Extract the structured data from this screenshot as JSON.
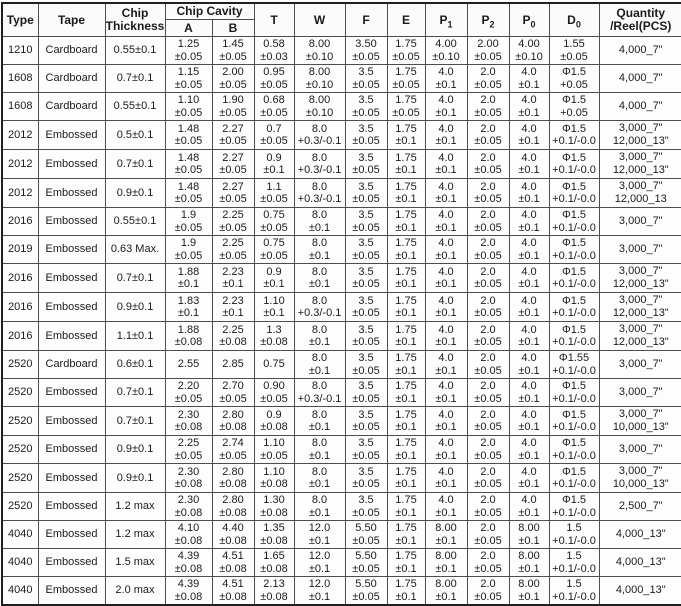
{
  "table": {
    "header": {
      "type": "Type",
      "tape": "Tape",
      "chip_thickness": "Chip Thickness",
      "chip_cavity": "Chip Cavity",
      "cavity_a": "A",
      "cavity_b": "B",
      "t": "T",
      "w": "W",
      "f": "F",
      "e": "E",
      "p1": {
        "base": "P",
        "sub": "1"
      },
      "p2": {
        "base": "P",
        "sub": "2"
      },
      "p0": {
        "base": "P",
        "sub": "0"
      },
      "d0": {
        "base": "D",
        "sub": "0"
      },
      "quantity": "Quantity /Reel(PCS)"
    },
    "rows": [
      {
        "type": "1210",
        "tape": "Cardboard",
        "thickness": "0.55±0.1",
        "a": [
          "1.25",
          "±0.05"
        ],
        "b": [
          "1.45",
          "±0.05"
        ],
        "t": [
          "0.58",
          "±0.03"
        ],
        "w": [
          "8.00",
          "±0.10"
        ],
        "f": [
          "3.50",
          "±0.05"
        ],
        "e": [
          "1.75",
          "±0.05"
        ],
        "p1": [
          "4.00",
          "±0.10"
        ],
        "p2": [
          "2.00",
          "±0.05"
        ],
        "p0": [
          "4.00",
          "±0.10"
        ],
        "d0": [
          "1.55",
          "±0.05"
        ],
        "qty": [
          "4,000_7\""
        ]
      },
      {
        "type": "1608",
        "tape": "Cardboard",
        "thickness": "0.7±0.1",
        "a": [
          "1.15",
          "±0.05"
        ],
        "b": [
          "2.00",
          "±0.05"
        ],
        "t": [
          "0.95",
          "±0.05"
        ],
        "w": [
          "8.00",
          "±0.10"
        ],
        "f": [
          "3.5",
          "±0.05"
        ],
        "e": [
          "1.75",
          "±0.05"
        ],
        "p1": [
          "4.0",
          "±0.1"
        ],
        "p2": [
          "2.0",
          "±0.05"
        ],
        "p0": [
          "4.0",
          "±0.1"
        ],
        "d0": [
          "Φ1.5",
          "+0.05"
        ],
        "qty": [
          "4,000_7\""
        ]
      },
      {
        "type": "1608",
        "tape": "Cardboard",
        "thickness": "0.55±0.1",
        "a": [
          "1.10",
          "±0.05"
        ],
        "b": [
          "1.90",
          "±0.05"
        ],
        "t": [
          "0.68",
          "±0.05"
        ],
        "w": [
          "8.00",
          "±0.10"
        ],
        "f": [
          "3.5",
          "±0.05"
        ],
        "e": [
          "1.75",
          "±0.05"
        ],
        "p1": [
          "4.0",
          "±0.1"
        ],
        "p2": [
          "2.0",
          "±0.05"
        ],
        "p0": [
          "4.0",
          "±0.1"
        ],
        "d0": [
          "Φ1.5",
          "+0.05"
        ],
        "qty": [
          "4,000_7\""
        ]
      },
      {
        "type": "2012",
        "tape": "Embossed",
        "thickness": "0.5±0.1",
        "a": [
          "1.48",
          "±0.05"
        ],
        "b": [
          "2.27",
          "±0.05"
        ],
        "t": [
          "0.7",
          "±0.05"
        ],
        "w": [
          "8.0",
          "+0.3/-0.1"
        ],
        "f": [
          "3.5",
          "±0.05"
        ],
        "e": [
          "1.75",
          "±0.1"
        ],
        "p1": [
          "4.0",
          "±0.1"
        ],
        "p2": [
          "2.0",
          "±0.05"
        ],
        "p0": [
          "4.0",
          "±0.1"
        ],
        "d0": [
          "Φ1.5",
          "+0.1/-0.0"
        ],
        "qty": [
          "3,000_7\"",
          "12,000_13\""
        ]
      },
      {
        "type": "2012",
        "tape": "Embossed",
        "thickness": "0.7±0.1",
        "a": [
          "1.48",
          "±0.05"
        ],
        "b": [
          "2.27",
          "±0.05"
        ],
        "t": [
          "0.9",
          "±0.1"
        ],
        "w": [
          "8.0",
          "+0.3/-0.1"
        ],
        "f": [
          "3.5",
          "±0.05"
        ],
        "e": [
          "1.75",
          "±0.1"
        ],
        "p1": [
          "4.0",
          "±0.1"
        ],
        "p2": [
          "2.0",
          "±0.05"
        ],
        "p0": [
          "4.0",
          "±0.1"
        ],
        "d0": [
          "Φ1.5",
          "+0.1/-0.0"
        ],
        "qty": [
          "3,000_7\"",
          "12,000_13\""
        ]
      },
      {
        "type": "2012",
        "tape": "Embossed",
        "thickness": "0.9±0.1",
        "a": [
          "1.48",
          "±0.05"
        ],
        "b": [
          "2.27",
          "±0.05"
        ],
        "t": [
          "1.1",
          "±0.05"
        ],
        "w": [
          "8.0",
          "+0.3/-0.1"
        ],
        "f": [
          "3.5",
          "±0.05"
        ],
        "e": [
          "1.75",
          "±0.1"
        ],
        "p1": [
          "4.0",
          "±0.1"
        ],
        "p2": [
          "2.0",
          "±0.05"
        ],
        "p0": [
          "4.0",
          "±0.1"
        ],
        "d0": [
          "Φ1.5",
          "+0.1/-0.0"
        ],
        "qty": [
          "3,000_7\"",
          "12,000_13"
        ]
      },
      {
        "type": "2016",
        "tape": "Embossed",
        "thickness": "0.55±0.1",
        "a": [
          "1.9",
          "±0.05"
        ],
        "b": [
          "2.25",
          "±0.05"
        ],
        "t": [
          "0.75",
          "±0.05"
        ],
        "w": [
          "8.0",
          "±0.1"
        ],
        "f": [
          "3.5",
          "±0.05"
        ],
        "e": [
          "1.75",
          "±0.1"
        ],
        "p1": [
          "4.0",
          "±0.1"
        ],
        "p2": [
          "2.0",
          "±0.05"
        ],
        "p0": [
          "4.0",
          "±0.1"
        ],
        "d0": [
          "Φ1.5",
          "+0.1/-0.0"
        ],
        "qty": [
          "3,000_7\""
        ]
      },
      {
        "type": "2019",
        "tape": "Embossed",
        "thickness": "0.63 Max.",
        "a": [
          "1.9",
          "±0.05"
        ],
        "b": [
          "2.25",
          "±0.05"
        ],
        "t": [
          "0.75",
          "±0.05"
        ],
        "w": [
          "8.0",
          "±0.1"
        ],
        "f": [
          "3.5",
          "±0.05"
        ],
        "e": [
          "1.75",
          "±0.1"
        ],
        "p1": [
          "4.0",
          "±0.1"
        ],
        "p2": [
          "2.0",
          "±0.05"
        ],
        "p0": [
          "4.0",
          "±0.1"
        ],
        "d0": [
          "Φ1.5",
          "+0.1/-0.0"
        ],
        "qty": [
          "3,000_7\""
        ]
      },
      {
        "type": "2016",
        "tape": "Embossed",
        "thickness": "0.7±0.1",
        "a": [
          "1.88",
          "±0.1"
        ],
        "b": [
          "2.23",
          "±0.1"
        ],
        "t": [
          "0.9",
          "±0.1"
        ],
        "w": [
          "8.0",
          "±0.1"
        ],
        "f": [
          "3.5",
          "±0.05"
        ],
        "e": [
          "1.75",
          "±0.1"
        ],
        "p1": [
          "4.0",
          "±0.1"
        ],
        "p2": [
          "2.0",
          "±0.05"
        ],
        "p0": [
          "4.0",
          "±0.1"
        ],
        "d0": [
          "Φ1.5",
          "+0.1/-0.0"
        ],
        "qty": [
          "3,000_7\"",
          "12,000_13\""
        ]
      },
      {
        "type": "2016",
        "tape": "Embossed",
        "thickness": "0.9±0.1",
        "a": [
          "1.83",
          "±0.1"
        ],
        "b": [
          "2.23",
          "±0.1"
        ],
        "t": [
          "1.10",
          "±0.1"
        ],
        "w": [
          "8.0",
          "+0.3/-0.1"
        ],
        "f": [
          "3.5",
          "±0.05"
        ],
        "e": [
          "1.75",
          "±0.1"
        ],
        "p1": [
          "4.0",
          "±0.1"
        ],
        "p2": [
          "2.0",
          "±0.05"
        ],
        "p0": [
          "4.0",
          "±0.1"
        ],
        "d0": [
          "Φ1.5",
          "+0.1/-0.0"
        ],
        "qty": [
          "3,000_7\"",
          "12,000_13\""
        ]
      },
      {
        "type": "2016",
        "tape": "Embossed",
        "thickness": "1.1±0.1",
        "a": [
          "1.88",
          "±0.08"
        ],
        "b": [
          "2.25",
          "±0.08"
        ],
        "t": [
          "1.3",
          "±0.08"
        ],
        "w": [
          "8.0",
          "±0.1"
        ],
        "f": [
          "3.5",
          "±0.05"
        ],
        "e": [
          "1.75",
          "±0.1"
        ],
        "p1": [
          "4.0",
          "±0.1"
        ],
        "p2": [
          "2.0",
          "±0.05"
        ],
        "p0": [
          "4.0",
          "±0.1"
        ],
        "d0": [
          "Φ1.5",
          "+0.1/-0.0"
        ],
        "qty": [
          "3,000_7\"",
          "12,000_13\""
        ]
      },
      {
        "type": "2520",
        "tape": "Cardboard",
        "thickness": "0.6±0.1",
        "a": [
          "2.55",
          ""
        ],
        "b": [
          "2.85",
          ""
        ],
        "t": [
          "0.75",
          ""
        ],
        "w": [
          "8.0",
          "±0.1"
        ],
        "f": [
          "3.5",
          "±0.05"
        ],
        "e": [
          "1.75",
          "±0.1"
        ],
        "p1": [
          "4.0",
          "±0.1"
        ],
        "p2": [
          "2.0",
          "±0.05"
        ],
        "p0": [
          "4.0",
          "±0.1"
        ],
        "d0": [
          "Φ1.55",
          "+0.1/-0.0"
        ],
        "qty": [
          "3,000_7\""
        ]
      },
      {
        "type": "2520",
        "tape": "Embossed",
        "thickness": "0.7±0.1",
        "a": [
          "2.20",
          "±0.05"
        ],
        "b": [
          "2.70",
          "±0.05"
        ],
        "t": [
          "0.90",
          "±0.05"
        ],
        "w": [
          "8.0",
          "+0.3/-0.1"
        ],
        "f": [
          "3.5",
          "±0.05"
        ],
        "e": [
          "1.75",
          "±0.1"
        ],
        "p1": [
          "4.0",
          "±0.1"
        ],
        "p2": [
          "2.0",
          "±0.05"
        ],
        "p0": [
          "4.0",
          "±0.1"
        ],
        "d0": [
          "Φ1.5",
          "+0.1/-0.0"
        ],
        "qty": [
          "3,000_7\""
        ]
      },
      {
        "type": "2520",
        "tape": "Embossed",
        "thickness": "0.7±0.1",
        "a": [
          "2.30",
          "±0.08"
        ],
        "b": [
          "2.80",
          "±0.08"
        ],
        "t": [
          "0.9",
          "±0.08"
        ],
        "w": [
          "8.0",
          "±0.1"
        ],
        "f": [
          "3.5",
          "±0.05"
        ],
        "e": [
          "1.75",
          "±0.1"
        ],
        "p1": [
          "4.0",
          "±0.1"
        ],
        "p2": [
          "2.0",
          "±0.05"
        ],
        "p0": [
          "4.0",
          "±0.1"
        ],
        "d0": [
          "Φ1.5",
          "+0.1/-0.0"
        ],
        "qty": [
          "3,000_7\"",
          "10,000_13\""
        ]
      },
      {
        "type": "2520",
        "tape": "Embossed",
        "thickness": "0.9±0.1",
        "a": [
          "2.25",
          "±0.05"
        ],
        "b": [
          "2.74",
          "±0.05"
        ],
        "t": [
          "1.10",
          "±0.05"
        ],
        "w": [
          "8.0",
          "±0.1"
        ],
        "f": [
          "3.5",
          "±0.05"
        ],
        "e": [
          "1.75",
          "±0.1"
        ],
        "p1": [
          "4.0",
          "±0.1"
        ],
        "p2": [
          "2.0",
          "±0.05"
        ],
        "p0": [
          "4.0",
          "±0.1"
        ],
        "d0": [
          "Φ1.5",
          "+0.1/-0.0"
        ],
        "qty": [
          "3,000_7\""
        ]
      },
      {
        "type": "2520",
        "tape": "Embossed",
        "thickness": "0.9±0.1",
        "a": [
          "2.30",
          "±0.08"
        ],
        "b": [
          "2.80",
          "±0.08"
        ],
        "t": [
          "1.10",
          "±0.08"
        ],
        "w": [
          "8.0",
          "±0.1"
        ],
        "f": [
          "3.5",
          "±0.05"
        ],
        "e": [
          "1.75",
          "±0.1"
        ],
        "p1": [
          "4.0",
          "±0.1"
        ],
        "p2": [
          "2.0",
          "±0.05"
        ],
        "p0": [
          "4.0",
          "±0.1"
        ],
        "d0": [
          "Φ1.5",
          "+0.1/-0.0"
        ],
        "qty": [
          "3,000_7\"",
          "10,000_13\""
        ]
      },
      {
        "type": "2520",
        "tape": "Embossed",
        "thickness": "1.2 max",
        "a": [
          "2.30",
          "±0.08"
        ],
        "b": [
          "2.80",
          "±0.08"
        ],
        "t": [
          "1.30",
          "±0.08"
        ],
        "w": [
          "8.0",
          "±0.1"
        ],
        "f": [
          "3.5",
          "±0.05"
        ],
        "e": [
          "1.75",
          "±0.1"
        ],
        "p1": [
          "4.0",
          "±0.1"
        ],
        "p2": [
          "2.0",
          "±0.05"
        ],
        "p0": [
          "4.0",
          "±0.1"
        ],
        "d0": [
          "Φ1.5",
          "+0.1/-0.0"
        ],
        "qty": [
          "2,500_7\""
        ]
      },
      {
        "type": "4040",
        "tape": "Embossed",
        "thickness": "1.2 max",
        "a": [
          "4.10",
          "±0.08"
        ],
        "b": [
          "4.40",
          "±0.08"
        ],
        "t": [
          "1.35",
          "±0.08"
        ],
        "w": [
          "12.0",
          "±0.1"
        ],
        "f": [
          "5.50",
          "±0.05"
        ],
        "e": [
          "1.75",
          "±0.1"
        ],
        "p1": [
          "8.00",
          "±0.1"
        ],
        "p2": [
          "2.0",
          "±0.05"
        ],
        "p0": [
          "8.00",
          "±0.1"
        ],
        "d0": [
          "1.5",
          "+0.1/-0.0"
        ],
        "qty": [
          "4,000_13\""
        ]
      },
      {
        "type": "4040",
        "tape": "Embossed",
        "thickness": "1.5 max",
        "a": [
          "4.39",
          "±0.08"
        ],
        "b": [
          "4.51",
          "±0.08"
        ],
        "t": [
          "1.65",
          "±0.08"
        ],
        "w": [
          "12.0",
          "±0.1"
        ],
        "f": [
          "5.50",
          "±0.05"
        ],
        "e": [
          "1.75",
          "±0.1"
        ],
        "p1": [
          "8.00",
          "±0.1"
        ],
        "p2": [
          "2.0",
          "±0.05"
        ],
        "p0": [
          "8.00",
          "±0.1"
        ],
        "d0": [
          "1.5",
          "+0.1/-0.0"
        ],
        "qty": [
          "4,000_13\""
        ]
      },
      {
        "type": "4040",
        "tape": "Embossed",
        "thickness": "2.0 max",
        "a": [
          "4.39",
          "±0.08"
        ],
        "b": [
          "4.51",
          "±0.08"
        ],
        "t": [
          "2.13",
          "±0.08"
        ],
        "w": [
          "12.0",
          "±0.1"
        ],
        "f": [
          "5.50",
          "±0.05"
        ],
        "e": [
          "1.75",
          "±0.1"
        ],
        "p1": [
          "8.00",
          "±0.1"
        ],
        "p2": [
          "2.0",
          "±0.05"
        ],
        "p0": [
          "8.00",
          "±0.1"
        ],
        "d0": [
          "1.5",
          "+0.1/-0.0"
        ],
        "qty": [
          "4,000_13\""
        ]
      }
    ]
  }
}
